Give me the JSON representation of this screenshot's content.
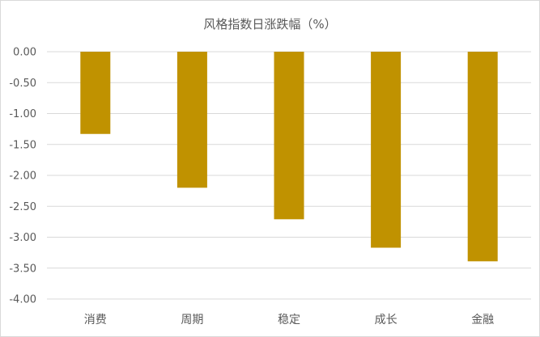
{
  "chart_data": {
    "type": "bar",
    "title": "风格指数日涨跌幅（%）",
    "categories": [
      "消费",
      "周期",
      "稳定",
      "成长",
      "金融"
    ],
    "values": [
      -1.33,
      -2.2,
      -2.71,
      -3.17,
      -3.39
    ],
    "ylim": [
      -4.0,
      0.0
    ],
    "yticks": [
      "0.00",
      "-0.50",
      "-1.00",
      "-1.50",
      "-2.00",
      "-2.50",
      "-3.00",
      "-3.50",
      "-4.00"
    ],
    "xlabel": "",
    "ylabel": "",
    "grid": true,
    "legend": "none",
    "colors": {
      "bar": "#C09200",
      "grid": "#D9D9D9",
      "text": "#595959"
    }
  }
}
